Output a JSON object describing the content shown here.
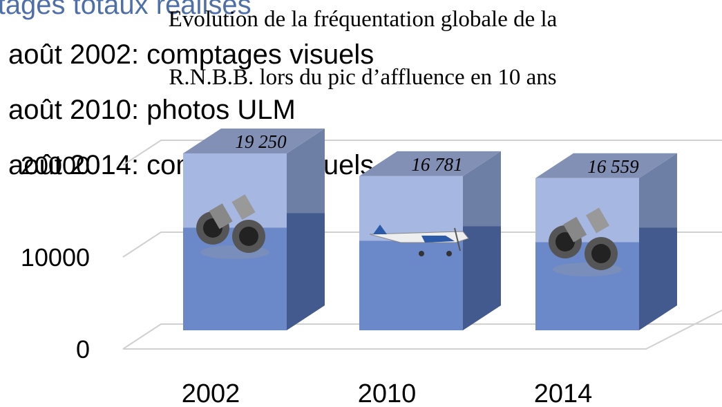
{
  "heading": "Comptages totaux réalisés",
  "bullets": [
    "août 2002: comptages visuels",
    "août 2010: photos ULM",
    "août 2014: comptages visuels"
  ],
  "chart_data": {
    "type": "bar",
    "title": [
      "Evolution de la fréquentation globale de la",
      "R.N.B.B. lors du pic d’affluence en 10 ans"
    ],
    "categories": [
      "2002",
      "2010",
      "2014"
    ],
    "values": [
      19250,
      16781,
      16559
    ],
    "value_labels": [
      "19 250",
      "16 781",
      "16 559"
    ],
    "color": "#8ea3d6",
    "ylim": [
      0,
      20000
    ],
    "yticks": [
      0,
      10000,
      20000
    ],
    "grid": true
  }
}
